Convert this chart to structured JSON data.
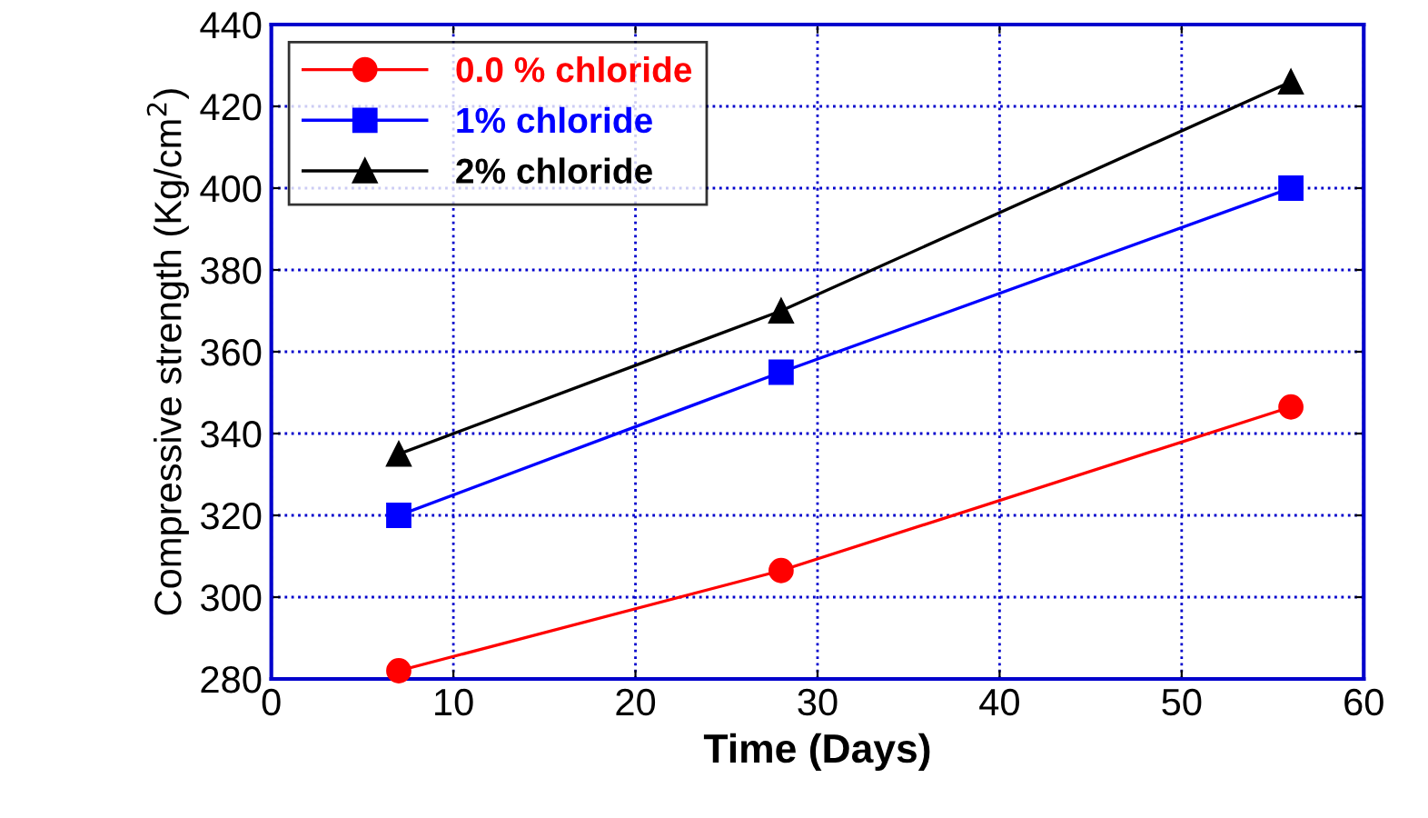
{
  "chart_data": {
    "type": "line",
    "xlabel": "Time (Days)",
    "ylabel": "Compressive strength (Kg/cm$^{2}$)",
    "x": [
      7,
      28,
      56
    ],
    "series": [
      {
        "name": "0.0 % chloride",
        "color": "#ff0000",
        "marker": "circle",
        "values": [
          282,
          306.5,
          346.5
        ]
      },
      {
        "name": "1% chloride",
        "color": "#0000ff",
        "marker": "square",
        "values": [
          320,
          355,
          400
        ]
      },
      {
        "name": "2% chloride",
        "color": "#000000",
        "marker": "triangle",
        "values": [
          335,
          370,
          426
        ]
      }
    ],
    "xlim": [
      0,
      60
    ],
    "xticks": [
      0,
      10,
      20,
      30,
      40,
      50,
      60
    ],
    "ylim": [
      280,
      440
    ],
    "yticks": [
      280,
      300,
      320,
      340,
      360,
      380,
      400,
      420,
      440
    ],
    "grid": true,
    "legend": "top left",
    "line_style": "solid"
  }
}
